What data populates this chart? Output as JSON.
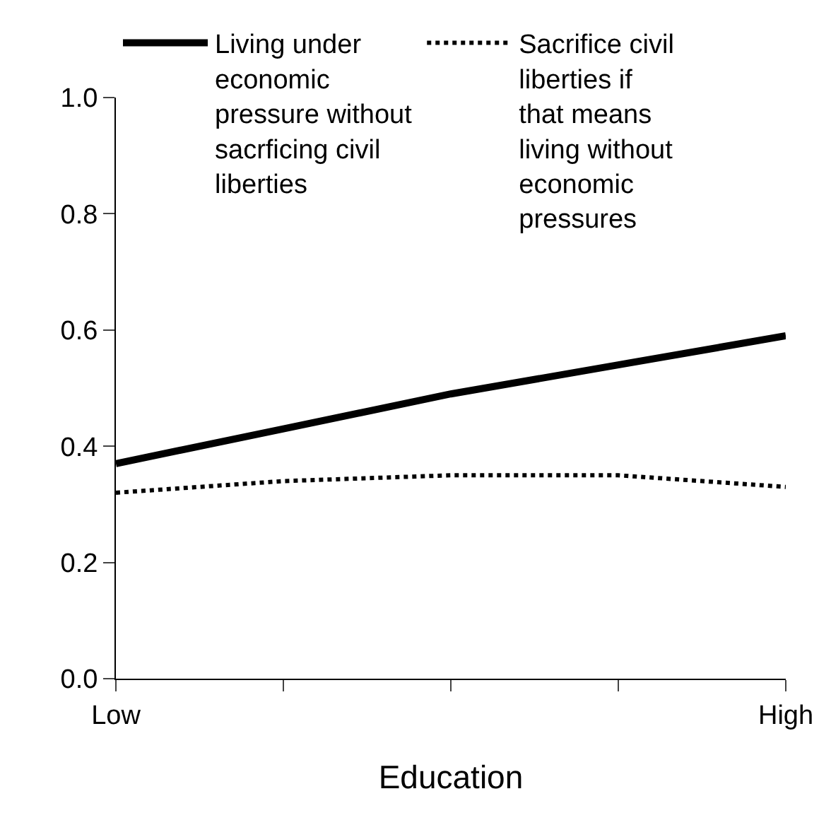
{
  "chart_data": {
    "type": "line",
    "xlabel": "Education",
    "categories": [
      "Low",
      null,
      null,
      null,
      "High"
    ],
    "series": [
      {
        "name": "Living under economic pressure without sacrficing civil liberties",
        "color": "#000000",
        "line_style": "solid",
        "values": [
          0.37,
          0.43,
          0.49,
          0.54,
          0.59
        ]
      },
      {
        "name": "Sacrifice civil liberties if that means living without economic pressures",
        "color": "#000000",
        "line_style": "dotted",
        "values": [
          0.32,
          0.34,
          0.35,
          0.35,
          0.33
        ]
      }
    ],
    "ylim": [
      0,
      1.0
    ],
    "yticks": [
      {
        "value": 0,
        "label": "0.0"
      },
      0.2,
      0.4,
      0.6,
      0.8,
      {
        "value": 1.0,
        "label": "1.0"
      }
    ],
    "legend": "top",
    "marker": "none"
  }
}
